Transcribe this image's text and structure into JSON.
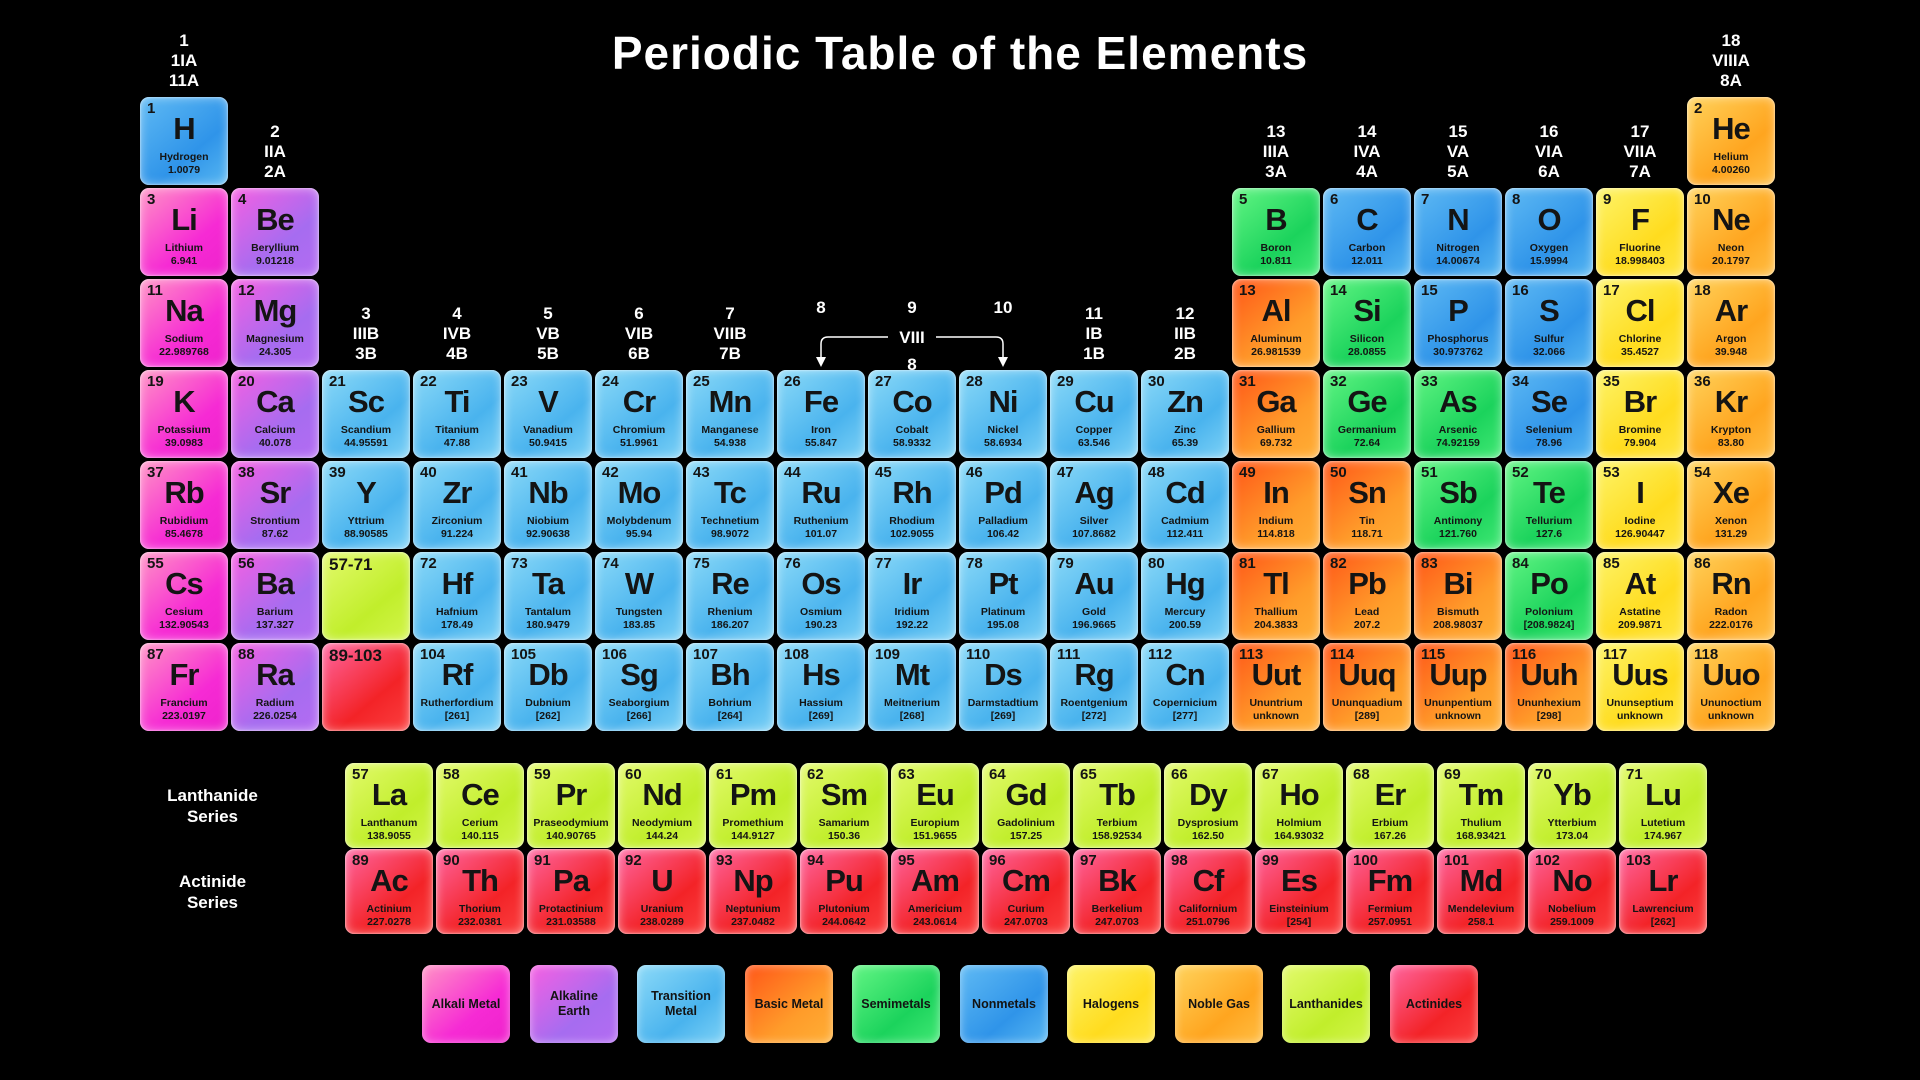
{
  "title": "Periodic Table of the Elements",
  "series_labels": {
    "lanthanide": "Lanthanide\nSeries",
    "actinide": "Actinide\nSeries"
  },
  "viii_bracket": {
    "label": "VIII",
    "sub": "8"
  },
  "group_headers": [
    {
      "col": 1,
      "row": 1,
      "lines": [
        "1",
        "1IA",
        "11A"
      ]
    },
    {
      "col": 2,
      "row": 2,
      "lines": [
        "2",
        "IIA",
        "2A"
      ]
    },
    {
      "col": 3,
      "row": 4,
      "lines": [
        "3",
        "IIIB",
        "3B"
      ]
    },
    {
      "col": 4,
      "row": 4,
      "lines": [
        "4",
        "IVB",
        "4B"
      ]
    },
    {
      "col": 5,
      "row": 4,
      "lines": [
        "5",
        "VB",
        "5B"
      ]
    },
    {
      "col": 6,
      "row": 4,
      "lines": [
        "6",
        "VIB",
        "6B"
      ]
    },
    {
      "col": 7,
      "row": 4,
      "lines": [
        "7",
        "VIIB",
        "7B"
      ]
    },
    {
      "col": 8,
      "row": 4,
      "lines": [
        "8"
      ]
    },
    {
      "col": 9,
      "row": 4,
      "lines": [
        "9"
      ]
    },
    {
      "col": 10,
      "row": 4,
      "lines": [
        "10"
      ]
    },
    {
      "col": 11,
      "row": 4,
      "lines": [
        "11",
        "IB",
        "1B"
      ]
    },
    {
      "col": 12,
      "row": 4,
      "lines": [
        "12",
        "IIB",
        "2B"
      ]
    },
    {
      "col": 13,
      "row": 2,
      "lines": [
        "13",
        "IIIA",
        "3A"
      ]
    },
    {
      "col": 14,
      "row": 2,
      "lines": [
        "14",
        "IVA",
        "4A"
      ]
    },
    {
      "col": 15,
      "row": 2,
      "lines": [
        "15",
        "VA",
        "5A"
      ]
    },
    {
      "col": 16,
      "row": 2,
      "lines": [
        "16",
        "VIA",
        "6A"
      ]
    },
    {
      "col": 17,
      "row": 2,
      "lines": [
        "17",
        "VIIA",
        "7A"
      ]
    },
    {
      "col": 18,
      "row": 1,
      "lines": [
        "18",
        "VIIIA",
        "8A"
      ]
    }
  ],
  "placeholders": [
    {
      "row": 6,
      "col": 3,
      "label": "57-71",
      "category": "lanthanide"
    },
    {
      "row": 7,
      "col": 3,
      "label": "89-103",
      "category": "actinide"
    }
  ],
  "element_fields": [
    "number",
    "symbol",
    "name",
    "mass",
    "category",
    "row",
    "col"
  ],
  "elements": [
    [
      1,
      "H",
      "Hydrogen",
      "1.0079",
      "nonmetal",
      1,
      1
    ],
    [
      2,
      "He",
      "Helium",
      "4.00260",
      "noble",
      1,
      18
    ],
    [
      3,
      "Li",
      "Lithium",
      "6.941",
      "alkali",
      2,
      1
    ],
    [
      4,
      "Be",
      "Beryllium",
      "9.01218",
      "alkaline",
      2,
      2
    ],
    [
      5,
      "B",
      "Boron",
      "10.811",
      "semimetal",
      2,
      13
    ],
    [
      6,
      "C",
      "Carbon",
      "12.011",
      "nonmetal",
      2,
      14
    ],
    [
      7,
      "N",
      "Nitrogen",
      "14.00674",
      "nonmetal",
      2,
      15
    ],
    [
      8,
      "O",
      "Oxygen",
      "15.9994",
      "nonmetal",
      2,
      16
    ],
    [
      9,
      "F",
      "Fluorine",
      "18.998403",
      "halogen",
      2,
      17
    ],
    [
      10,
      "Ne",
      "Neon",
      "20.1797",
      "noble",
      2,
      18
    ],
    [
      11,
      "Na",
      "Sodium",
      "22.989768",
      "alkali",
      3,
      1
    ],
    [
      12,
      "Mg",
      "Magnesium",
      "24.305",
      "alkaline",
      3,
      2
    ],
    [
      13,
      "Al",
      "Aluminum",
      "26.981539",
      "basic",
      3,
      13
    ],
    [
      14,
      "Si",
      "Silicon",
      "28.0855",
      "semimetal",
      3,
      14
    ],
    [
      15,
      "P",
      "Phosphorus",
      "30.973762",
      "nonmetal",
      3,
      15
    ],
    [
      16,
      "S",
      "Sulfur",
      "32.066",
      "nonmetal",
      3,
      16
    ],
    [
      17,
      "Cl",
      "Chlorine",
      "35.4527",
      "halogen",
      3,
      17
    ],
    [
      18,
      "Ar",
      "Argon",
      "39.948",
      "noble",
      3,
      18
    ],
    [
      19,
      "K",
      "Potassium",
      "39.0983",
      "alkali",
      4,
      1
    ],
    [
      20,
      "Ca",
      "Calcium",
      "40.078",
      "alkaline",
      4,
      2
    ],
    [
      21,
      "Sc",
      "Scandium",
      "44.95591",
      "transition",
      4,
      3
    ],
    [
      22,
      "Ti",
      "Titanium",
      "47.88",
      "transition",
      4,
      4
    ],
    [
      23,
      "V",
      "Vanadium",
      "50.9415",
      "transition",
      4,
      5
    ],
    [
      24,
      "Cr",
      "Chromium",
      "51.9961",
      "transition",
      4,
      6
    ],
    [
      25,
      "Mn",
      "Manganese",
      "54.938",
      "transition",
      4,
      7
    ],
    [
      26,
      "Fe",
      "Iron",
      "55.847",
      "transition",
      4,
      8
    ],
    [
      27,
      "Co",
      "Cobalt",
      "58.9332",
      "transition",
      4,
      9
    ],
    [
      28,
      "Ni",
      "Nickel",
      "58.6934",
      "transition",
      4,
      10
    ],
    [
      29,
      "Cu",
      "Copper",
      "63.546",
      "transition",
      4,
      11
    ],
    [
      30,
      "Zn",
      "Zinc",
      "65.39",
      "transition",
      4,
      12
    ],
    [
      31,
      "Ga",
      "Gallium",
      "69.732",
      "basic",
      4,
      13
    ],
    [
      32,
      "Ge",
      "Germanium",
      "72.64",
      "semimetal",
      4,
      14
    ],
    [
      33,
      "As",
      "Arsenic",
      "74.92159",
      "semimetal",
      4,
      15
    ],
    [
      34,
      "Se",
      "Selenium",
      "78.96",
      "nonmetal",
      4,
      16
    ],
    [
      35,
      "Br",
      "Bromine",
      "79.904",
      "halogen",
      4,
      17
    ],
    [
      36,
      "Kr",
      "Krypton",
      "83.80",
      "noble",
      4,
      18
    ],
    [
      37,
      "Rb",
      "Rubidium",
      "85.4678",
      "alkali",
      5,
      1
    ],
    [
      38,
      "Sr",
      "Strontium",
      "87.62",
      "alkaline",
      5,
      2
    ],
    [
      39,
      "Y",
      "Yttrium",
      "88.90585",
      "transition",
      5,
      3
    ],
    [
      40,
      "Zr",
      "Zirconium",
      "91.224",
      "transition",
      5,
      4
    ],
    [
      41,
      "Nb",
      "Niobium",
      "92.90638",
      "transition",
      5,
      5
    ],
    [
      42,
      "Mo",
      "Molybdenum",
      "95.94",
      "transition",
      5,
      6
    ],
    [
      43,
      "Tc",
      "Technetium",
      "98.9072",
      "transition",
      5,
      7
    ],
    [
      44,
      "Ru",
      "Ruthenium",
      "101.07",
      "transition",
      5,
      8
    ],
    [
      45,
      "Rh",
      "Rhodium",
      "102.9055",
      "transition",
      5,
      9
    ],
    [
      46,
      "Pd",
      "Palladium",
      "106.42",
      "transition",
      5,
      10
    ],
    [
      47,
      "Ag",
      "Silver",
      "107.8682",
      "transition",
      5,
      11
    ],
    [
      48,
      "Cd",
      "Cadmium",
      "112.411",
      "transition",
      5,
      12
    ],
    [
      49,
      "In",
      "Indium",
      "114.818",
      "basic",
      5,
      13
    ],
    [
      50,
      "Sn",
      "Tin",
      "118.71",
      "basic",
      5,
      14
    ],
    [
      51,
      "Sb",
      "Antimony",
      "121.760",
      "semimetal",
      5,
      15
    ],
    [
      52,
      "Te",
      "Tellurium",
      "127.6",
      "semimetal",
      5,
      16
    ],
    [
      53,
      "I",
      "Iodine",
      "126.90447",
      "halogen",
      5,
      17
    ],
    [
      54,
      "Xe",
      "Xenon",
      "131.29",
      "noble",
      5,
      18
    ],
    [
      55,
      "Cs",
      "Cesium",
      "132.90543",
      "alkali",
      6,
      1
    ],
    [
      56,
      "Ba",
      "Barium",
      "137.327",
      "alkaline",
      6,
      2
    ],
    [
      72,
      "Hf",
      "Hafnium",
      "178.49",
      "transition",
      6,
      4
    ],
    [
      73,
      "Ta",
      "Tantalum",
      "180.9479",
      "transition",
      6,
      5
    ],
    [
      74,
      "W",
      "Tungsten",
      "183.85",
      "transition",
      6,
      6
    ],
    [
      75,
      "Re",
      "Rhenium",
      "186.207",
      "transition",
      6,
      7
    ],
    [
      76,
      "Os",
      "Osmium",
      "190.23",
      "transition",
      6,
      8
    ],
    [
      77,
      "Ir",
      "Iridium",
      "192.22",
      "transition",
      6,
      9
    ],
    [
      78,
      "Pt",
      "Platinum",
      "195.08",
      "transition",
      6,
      10
    ],
    [
      79,
      "Au",
      "Gold",
      "196.9665",
      "transition",
      6,
      11
    ],
    [
      80,
      "Hg",
      "Mercury",
      "200.59",
      "transition",
      6,
      12
    ],
    [
      81,
      "Tl",
      "Thallium",
      "204.3833",
      "basic",
      6,
      13
    ],
    [
      82,
      "Pb",
      "Lead",
      "207.2",
      "basic",
      6,
      14
    ],
    [
      83,
      "Bi",
      "Bismuth",
      "208.98037",
      "basic",
      6,
      15
    ],
    [
      84,
      "Po",
      "Polonium",
      "[208.9824]",
      "semimetal",
      6,
      16
    ],
    [
      85,
      "At",
      "Astatine",
      "209.9871",
      "halogen",
      6,
      17
    ],
    [
      86,
      "Rn",
      "Radon",
      "222.0176",
      "noble",
      6,
      18
    ],
    [
      87,
      "Fr",
      "Francium",
      "223.0197",
      "alkali",
      7,
      1
    ],
    [
      88,
      "Ra",
      "Radium",
      "226.0254",
      "alkaline",
      7,
      2
    ],
    [
      104,
      "Rf",
      "Rutherfordium",
      "[261]",
      "transition",
      7,
      4
    ],
    [
      105,
      "Db",
      "Dubnium",
      "[262]",
      "transition",
      7,
      5
    ],
    [
      106,
      "Sg",
      "Seaborgium",
      "[266]",
      "transition",
      7,
      6
    ],
    [
      107,
      "Bh",
      "Bohrium",
      "[264]",
      "transition",
      7,
      7
    ],
    [
      108,
      "Hs",
      "Hassium",
      "[269]",
      "transition",
      7,
      8
    ],
    [
      109,
      "Mt",
      "Meitnerium",
      "[268]",
      "transition",
      7,
      9
    ],
    [
      110,
      "Ds",
      "Darmstadtium",
      "[269]",
      "transition",
      7,
      10
    ],
    [
      111,
      "Rg",
      "Roentgenium",
      "[272]",
      "transition",
      7,
      11
    ],
    [
      112,
      "Cn",
      "Copernicium",
      "[277]",
      "transition",
      7,
      12
    ],
    [
      113,
      "Uut",
      "Ununtrium",
      "unknown",
      "basic",
      7,
      13
    ],
    [
      114,
      "Uuq",
      "Ununquadium",
      "[289]",
      "basic",
      7,
      14
    ],
    [
      115,
      "Uup",
      "Ununpentium",
      "unknown",
      "basic",
      7,
      15
    ],
    [
      116,
      "Uuh",
      "Ununhexium",
      "[298]",
      "basic",
      7,
      16
    ],
    [
      117,
      "Uus",
      "Ununseptium",
      "unknown",
      "halogen",
      7,
      17
    ],
    [
      118,
      "Uuo",
      "Ununoctium",
      "unknown",
      "noble",
      7,
      18
    ],
    [
      57,
      "La",
      "Lanthanum",
      "138.9055",
      "lanthanide",
      "L",
      1
    ],
    [
      58,
      "Ce",
      "Cerium",
      "140.115",
      "lanthanide",
      "L",
      2
    ],
    [
      59,
      "Pr",
      "Praseodymium",
      "140.90765",
      "lanthanide",
      "L",
      3
    ],
    [
      60,
      "Nd",
      "Neodymium",
      "144.24",
      "lanthanide",
      "L",
      4
    ],
    [
      61,
      "Pm",
      "Promethium",
      "144.9127",
      "lanthanide",
      "L",
      5
    ],
    [
      62,
      "Sm",
      "Samarium",
      "150.36",
      "lanthanide",
      "L",
      6
    ],
    [
      63,
      "Eu",
      "Europium",
      "151.9655",
      "lanthanide",
      "L",
      7
    ],
    [
      64,
      "Gd",
      "Gadolinium",
      "157.25",
      "lanthanide",
      "L",
      8
    ],
    [
      65,
      "Tb",
      "Terbium",
      "158.92534",
      "lanthanide",
      "L",
      9
    ],
    [
      66,
      "Dy",
      "Dysprosium",
      "162.50",
      "lanthanide",
      "L",
      10
    ],
    [
      67,
      "Ho",
      "Holmium",
      "164.93032",
      "lanthanide",
      "L",
      11
    ],
    [
      68,
      "Er",
      "Erbium",
      "167.26",
      "lanthanide",
      "L",
      12
    ],
    [
      69,
      "Tm",
      "Thulium",
      "168.93421",
      "lanthanide",
      "L",
      13
    ],
    [
      70,
      "Yb",
      "Ytterbium",
      "173.04",
      "lanthanide",
      "L",
      14
    ],
    [
      71,
      "Lu",
      "Lutetium",
      "174.967",
      "lanthanide",
      "L",
      15
    ],
    [
      89,
      "Ac",
      "Actinium",
      "227.0278",
      "actinide",
      "A",
      1
    ],
    [
      90,
      "Th",
      "Thorium",
      "232.0381",
      "actinide",
      "A",
      2
    ],
    [
      91,
      "Pa",
      "Protactinium",
      "231.03588",
      "actinide",
      "A",
      3
    ],
    [
      92,
      "U",
      "Uranium",
      "238.0289",
      "actinide",
      "A",
      4
    ],
    [
      93,
      "Np",
      "Neptunium",
      "237.0482",
      "actinide",
      "A",
      5
    ],
    [
      94,
      "Pu",
      "Plutonium",
      "244.0642",
      "actinide",
      "A",
      6
    ],
    [
      95,
      "Am",
      "Americium",
      "243.0614",
      "actinide",
      "A",
      7
    ],
    [
      96,
      "Cm",
      "Curium",
      "247.0703",
      "actinide",
      "A",
      8
    ],
    [
      97,
      "Bk",
      "Berkelium",
      "247.0703",
      "actinide",
      "A",
      9
    ],
    [
      98,
      "Cf",
      "Californium",
      "251.0796",
      "actinide",
      "A",
      10
    ],
    [
      99,
      "Es",
      "Einsteinium",
      "[254]",
      "actinide",
      "A",
      11
    ],
    [
      100,
      "Fm",
      "Fermium",
      "257.0951",
      "actinide",
      "A",
      12
    ],
    [
      101,
      "Md",
      "Mendelevium",
      "258.1",
      "actinide",
      "A",
      13
    ],
    [
      102,
      "No",
      "Nobelium",
      "259.1009",
      "actinide",
      "A",
      14
    ],
    [
      103,
      "Lr",
      "Lawrencium",
      "[262]",
      "actinide",
      "A",
      15
    ]
  ],
  "legend": [
    {
      "label": "Alkali Metal",
      "category": "alkali"
    },
    {
      "label": "Alkaline Earth",
      "category": "alkaline"
    },
    {
      "label": "Transition Metal",
      "category": "transition"
    },
    {
      "label": "Basic Metal",
      "category": "basic"
    },
    {
      "label": "Semimetals",
      "category": "semimetal"
    },
    {
      "label": "Nonmetals",
      "category": "nonmetal"
    },
    {
      "label": "Halogens",
      "category": "halogen"
    },
    {
      "label": "Noble Gas",
      "category": "noble"
    },
    {
      "label": "Lanthanides",
      "category": "lanthanide"
    },
    {
      "label": "Actinides",
      "category": "actinide"
    }
  ],
  "category_colors": {
    "alkali": [
      "#ff93c5",
      "#f62ad4",
      "#ee22cc"
    ],
    "alkaline": [
      "#f660e2",
      "#a66cf0",
      "#b46bf2"
    ],
    "transition": [
      "#8cdaf8",
      "#49b3ee",
      "#7ed2f6"
    ],
    "basic": [
      "#ff5518",
      "#ff9c2a",
      "#ffaf36"
    ],
    "semimetal": [
      "#63f584",
      "#1bd35c",
      "#41e874"
    ],
    "nonmetal": [
      "#5fbaf4",
      "#2f94e9",
      "#57b7f2"
    ],
    "halogen": [
      "#fdf46a",
      "#ffdc1e",
      "#ffe746"
    ],
    "noble": [
      "#ffd35c",
      "#ffa51f",
      "#ffbe44"
    ],
    "lanthanide": [
      "#e3fa6d",
      "#c1ee2b",
      "#d3f54b"
    ],
    "actinide": [
      "#ff66a1",
      "#f32327",
      "#fb4040"
    ]
  },
  "text_color": "#141414",
  "background_color": "#000000"
}
